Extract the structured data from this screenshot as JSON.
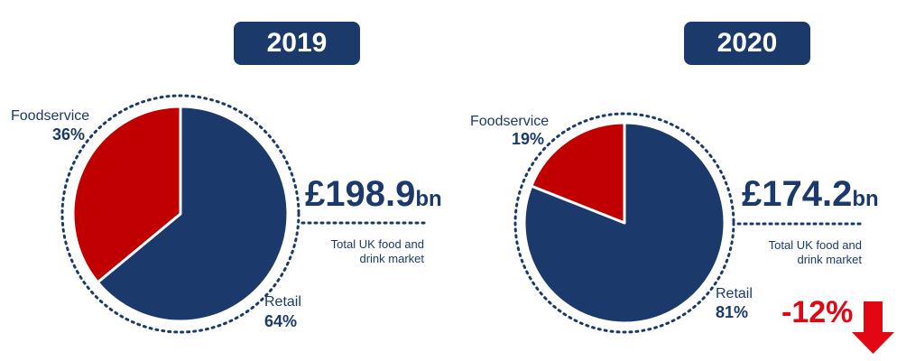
{
  "chart_data": [
    {
      "type": "pie",
      "title": "2019",
      "categories": [
        "Foodservice",
        "Retail"
      ],
      "values": [
        36,
        64
      ],
      "value_labels": [
        "36%",
        "64%"
      ],
      "total_value": "£198.9",
      "total_unit": "bn",
      "total_caption": [
        "Total UK food and",
        "drink market"
      ],
      "colors": [
        "#c00000",
        "#1b3a6b"
      ]
    },
    {
      "type": "pie",
      "title": "2020",
      "categories": [
        "Foodservice",
        "Retail"
      ],
      "values": [
        19,
        81
      ],
      "value_labels": [
        "19%",
        "81%"
      ],
      "total_value": "£174.2",
      "total_unit": "bn",
      "total_caption": [
        "Total UK food and",
        "drink market"
      ],
      "colors": [
        "#c00000",
        "#1b3a6b"
      ]
    }
  ],
  "change": {
    "label": "-12%",
    "icon": "down-arrow-icon",
    "color": "#e30613"
  }
}
